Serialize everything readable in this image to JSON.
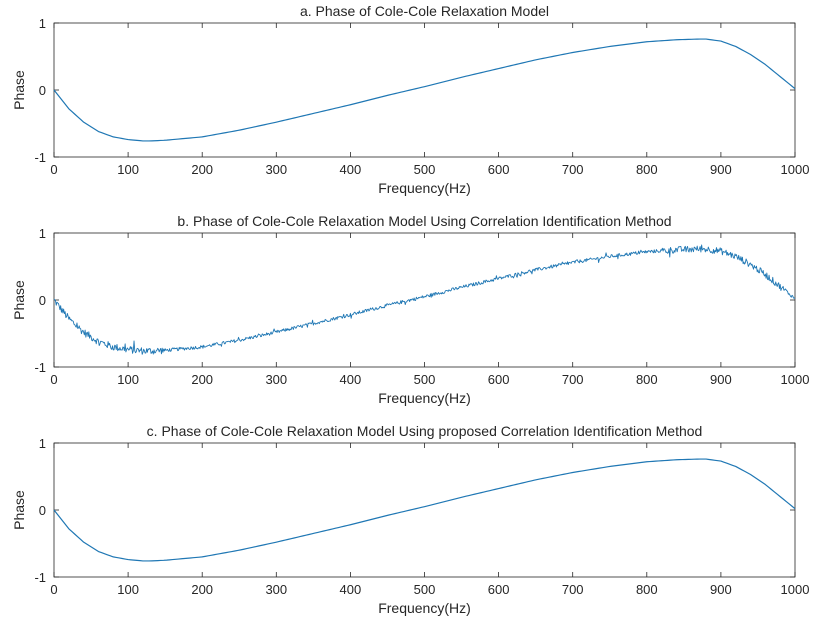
{
  "figure": {
    "line_color": "#1f77b4",
    "axis_color": "#262626"
  },
  "chart_data": [
    {
      "type": "line",
      "title": "a. Phase of Cole-Cole Relaxation Model",
      "xlabel": "Frequency(Hz)",
      "ylabel": "Phase",
      "xlim": [
        0,
        1000
      ],
      "ylim": [
        -1,
        1
      ],
      "xticks": [
        "0",
        "100",
        "200",
        "300",
        "400",
        "500",
        "600",
        "700",
        "800",
        "900",
        "1000"
      ],
      "yticks": [
        "-1",
        "0",
        "1"
      ],
      "grid": false,
      "noise": false,
      "series": [
        {
          "x": [
            0,
            20,
            40,
            60,
            80,
            100,
            120,
            130,
            150,
            200,
            250,
            300,
            350,
            400,
            450,
            500,
            550,
            600,
            650,
            700,
            750,
            800,
            840,
            870,
            880,
            900,
            920,
            940,
            960,
            980,
            1000
          ],
          "values": [
            0,
            -0.28,
            -0.48,
            -0.62,
            -0.7,
            -0.74,
            -0.76,
            -0.76,
            -0.75,
            -0.7,
            -0.6,
            -0.48,
            -0.35,
            -0.22,
            -0.08,
            0.05,
            0.19,
            0.32,
            0.45,
            0.56,
            0.65,
            0.72,
            0.75,
            0.76,
            0.76,
            0.73,
            0.65,
            0.53,
            0.38,
            0.2,
            0.02
          ]
        }
      ]
    },
    {
      "type": "line",
      "title": "b. Phase of Cole-Cole Relaxation Model Using Correlation Identification Method",
      "xlabel": "Frequency(Hz)",
      "ylabel": "Phase",
      "xlim": [
        0,
        1000
      ],
      "ylim": [
        -1,
        1
      ],
      "xticks": [
        "0",
        "100",
        "200",
        "300",
        "400",
        "500",
        "600",
        "700",
        "800",
        "900",
        "1000"
      ],
      "yticks": [
        "-1",
        "0",
        "1"
      ],
      "grid": false,
      "noise": true,
      "series": [
        {
          "x": [
            0,
            20,
            40,
            60,
            80,
            100,
            120,
            130,
            150,
            200,
            250,
            300,
            350,
            400,
            450,
            500,
            550,
            600,
            650,
            700,
            750,
            800,
            840,
            870,
            880,
            900,
            920,
            940,
            960,
            980,
            1000
          ],
          "values": [
            0,
            -0.28,
            -0.48,
            -0.62,
            -0.7,
            -0.74,
            -0.76,
            -0.76,
            -0.75,
            -0.7,
            -0.6,
            -0.48,
            -0.35,
            -0.22,
            -0.08,
            0.05,
            0.19,
            0.32,
            0.45,
            0.56,
            0.65,
            0.72,
            0.75,
            0.76,
            0.76,
            0.73,
            0.65,
            0.53,
            0.38,
            0.2,
            0.02
          ]
        }
      ]
    },
    {
      "type": "line",
      "title": "c. Phase of Cole-Cole Relaxation Model Using proposed Correlation Identification Method",
      "xlabel": "Frequency(Hz)",
      "ylabel": "Phase",
      "xlim": [
        0,
        1000
      ],
      "ylim": [
        -1,
        1
      ],
      "xticks": [
        "0",
        "100",
        "200",
        "300",
        "400",
        "500",
        "600",
        "700",
        "800",
        "900",
        "1000"
      ],
      "yticks": [
        "-1",
        "0",
        "1"
      ],
      "grid": false,
      "noise": false,
      "series": [
        {
          "x": [
            0,
            20,
            40,
            60,
            80,
            100,
            120,
            130,
            150,
            200,
            250,
            300,
            350,
            400,
            450,
            500,
            550,
            600,
            650,
            700,
            750,
            800,
            840,
            870,
            880,
            900,
            920,
            940,
            960,
            980,
            1000
          ],
          "values": [
            0,
            -0.28,
            -0.48,
            -0.62,
            -0.7,
            -0.74,
            -0.76,
            -0.76,
            -0.75,
            -0.7,
            -0.6,
            -0.48,
            -0.35,
            -0.22,
            -0.08,
            0.05,
            0.19,
            0.32,
            0.45,
            0.56,
            0.65,
            0.72,
            0.75,
            0.76,
            0.76,
            0.73,
            0.65,
            0.53,
            0.38,
            0.2,
            0.02
          ]
        }
      ]
    }
  ]
}
